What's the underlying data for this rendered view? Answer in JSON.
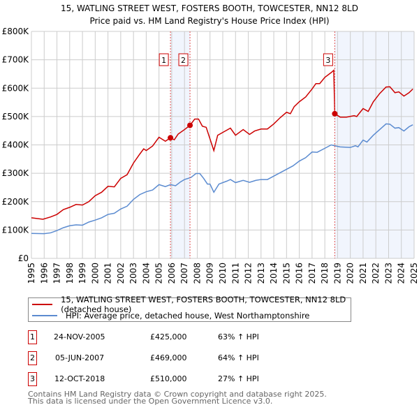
{
  "chart_data": {
    "type": "line",
    "title": "15, WATLING STREET WEST, FOSTERS BOOTH, TOWCESTER, NN12 8LD",
    "subtitle": "Price paid vs. HM Land Registry's House Price Index (HPI)",
    "xlim": [
      1995,
      2025
    ],
    "ylim": [
      0,
      800000
    ],
    "x_ticks": [
      "1995",
      "1996",
      "1997",
      "1998",
      "1999",
      "2000",
      "2001",
      "2002",
      "2003",
      "2004",
      "2005",
      "2006",
      "2007",
      "2008",
      "2009",
      "2010",
      "2011",
      "2012",
      "2013",
      "2014",
      "2015",
      "2016",
      "2017",
      "2018",
      "2019",
      "2020",
      "2021",
      "2022",
      "2023",
      "2024",
      "2025"
    ],
    "y_ticks": [
      {
        "v": 0,
        "label": "£0"
      },
      {
        "v": 100000,
        "label": "£100K"
      },
      {
        "v": 200000,
        "label": "£200K"
      },
      {
        "v": 300000,
        "label": "£300K"
      },
      {
        "v": 400000,
        "label": "£400K"
      },
      {
        "v": 500000,
        "label": "£500K"
      },
      {
        "v": 600000,
        "label": "£600K"
      },
      {
        "v": 700000,
        "label": "£700K"
      },
      {
        "v": 800000,
        "label": "£800K"
      }
    ],
    "grid": true,
    "series": [
      {
        "name": "15, WATLING STREET WEST, FOSTERS BOOTH, TOWCESTER, NN12 8LD (detached house)",
        "color": "#cc0000",
        "x": [
          1995,
          1995.9,
          1996.5,
          1997,
          1997.5,
          1998,
          1998.5,
          1999,
          1999.5,
          2000,
          2000.5,
          2001,
          2001.5,
          2002,
          2002.5,
          2003,
          2003.5,
          2003.8,
          2004,
          2004.5,
          2005,
          2005.5,
          2005.9,
          2006.2,
          2006.5,
          2007,
          2007.43,
          2007.8,
          2008.1,
          2008.4,
          2008.7,
          2009,
          2009.3,
          2009.6,
          2010,
          2010.6,
          2011,
          2011.6,
          2012.1,
          2012.5,
          2013,
          2013.5,
          2014,
          2014.5,
          2015,
          2015.3,
          2015.6,
          2016,
          2016.5,
          2017,
          2017.3,
          2017.6,
          2018,
          2018.5,
          2018.7,
          2018.78,
          2019.2,
          2019.7,
          2020.3,
          2020.5,
          2021,
          2021.4,
          2021.8,
          2022.3,
          2022.8,
          2023.1,
          2023.5,
          2023.8,
          2024.2,
          2024.6,
          2024.9
        ],
        "y": [
          143,
          138,
          146,
          155,
          172,
          180,
          190,
          188,
          200,
          221,
          233,
          254,
          252,
          282,
          295,
          336,
          368,
          386,
          380,
          396,
          427,
          413,
          425,
          418,
          438,
          454,
          469,
          491,
          491,
          466,
          462,
          421,
          380,
          434,
          444,
          459,
          434,
          454,
          437,
          449,
          456,
          456,
          474,
          496,
          515,
          510,
          535,
          552,
          569,
          597,
          616,
          616,
          638,
          655,
          663,
          510,
          498,
          498,
          503,
          500,
          528,
          518,
          552,
          581,
          604,
          605,
          584,
          587,
          572,
          584,
          597
        ]
      },
      {
        "name": "HPI: Average price, detached house, West Northamptonshire",
        "color": "#5b8bd0",
        "x": [
          1995,
          1996,
          1996.5,
          1997,
          1997.5,
          1998,
          1998.5,
          1999,
          1999.5,
          2000,
          2000.5,
          2001,
          2001.5,
          2002,
          2002.5,
          2003,
          2003.5,
          2004,
          2004.5,
          2005,
          2005.5,
          2005.9,
          2006.3,
          2006.7,
          2007,
          2007.5,
          2007.9,
          2008.2,
          2008.5,
          2008.8,
          2009,
          2009.3,
          2009.7,
          2010.3,
          2010.6,
          2011,
          2011.6,
          2012.1,
          2012.6,
          2013,
          2013.5,
          2014,
          2014.5,
          2015,
          2015.5,
          2016,
          2016.5,
          2017,
          2017.4,
          2018,
          2018.5,
          2018.78,
          2019.2,
          2020,
          2020.4,
          2020.6,
          2021,
          2021.3,
          2021.8,
          2022.3,
          2022.8,
          2023.1,
          2023.5,
          2023.8,
          2024.2,
          2024.6,
          2024.9
        ],
        "y": [
          88,
          87,
          90,
          98,
          108,
          115,
          118,
          117,
          128,
          135,
          143,
          155,
          159,
          174,
          184,
          208,
          225,
          235,
          241,
          260,
          253,
          260,
          256,
          270,
          278,
          285,
          299,
          299,
          282,
          262,
          262,
          233,
          262,
          272,
          278,
          267,
          275,
          268,
          275,
          278,
          278,
          290,
          302,
          314,
          326,
          343,
          355,
          375,
          374,
          388,
          400,
          397,
          393,
          391,
          397,
          393,
          417,
          410,
          434,
          454,
          474,
          473,
          459,
          461,
          449,
          464,
          471
        ]
      }
    ],
    "y_unit": "thousands GBP",
    "shaded_ranges": [
      [
        2005.9,
        2007.43
      ],
      [
        2018.78,
        2025
      ]
    ],
    "sales": [
      {
        "n": "1",
        "date": "24-NOV-2005",
        "price": "£425,000",
        "hpi": "63% ↑ HPI",
        "x": 2005.9,
        "y": 425
      },
      {
        "n": "2",
        "date": "05-JUN-2007",
        "price": "£469,000",
        "hpi": "64% ↑ HPI",
        "x": 2007.43,
        "y": 469
      },
      {
        "n": "3",
        "date": "12-OCT-2018",
        "price": "£510,000",
        "hpi": "27% ↑ HPI",
        "x": 2018.78,
        "y": 510
      }
    ]
  },
  "footer": {
    "line1": "Contains HM Land Registry data © Crown copyright and database right 2025.",
    "line2": "This data is licensed under the Open Government Licence v3.0."
  }
}
